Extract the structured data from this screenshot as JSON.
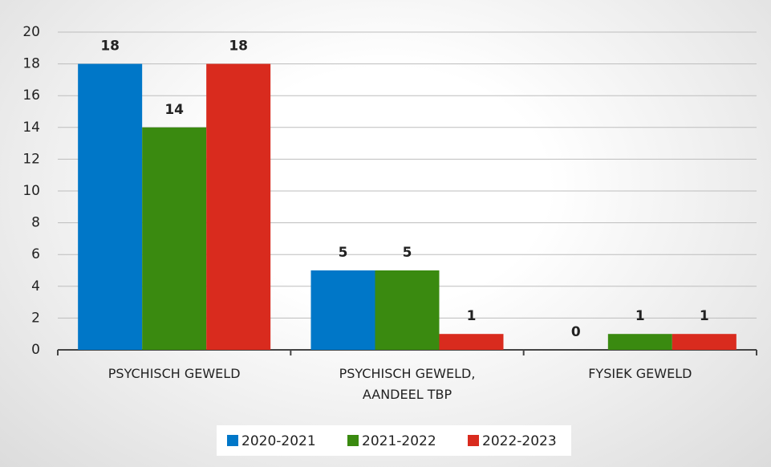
{
  "chart_data": {
    "type": "bar",
    "categories": [
      "PSYCHISCH GEWELD",
      "PSYCHISCH GEWELD, AANDEEL TBP",
      "FYSIEK GEWELD"
    ],
    "series": [
      {
        "name": "2020-2021",
        "color": "#0077c8",
        "values": [
          18,
          5,
          0
        ]
      },
      {
        "name": "2021-2022",
        "color": "#3a8a10",
        "values": [
          14,
          5,
          1
        ]
      },
      {
        "name": "2022-2023",
        "color": "#d92b1e",
        "values": [
          18,
          1,
          1
        ]
      }
    ],
    "ylim": [
      0,
      20
    ],
    "yticks": [
      0,
      2,
      4,
      6,
      8,
      10,
      12,
      14,
      16,
      18,
      20
    ],
    "grid": true,
    "legend": "bottom"
  }
}
